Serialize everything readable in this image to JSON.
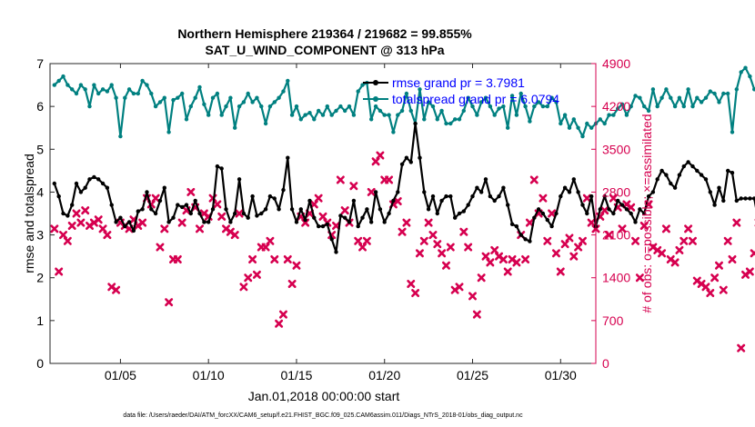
{
  "chart_data": {
    "type": "line",
    "title_line1": "Northern Hemisphere 219364 / 219682 = 99.855%",
    "title_line2": "SAT_U_WIND_COMPONENT @ 313 hPa",
    "xlabel": "Jan.01,2018 00:00:00 start",
    "ylabel_left": "rmse and totalspread",
    "ylabel_right": "# of obs: o=possible; ×=assimilated",
    "footnote": "data file: /Users/raeder/DAI/ATM_forcXX/CAM6_setup/f.e21.FHIST_BGC.f09_025.CAM6assim.011/Diags_NTrS_2018-01/obs_diag_output.nc",
    "xlim": [
      1.0,
      32.0
    ],
    "ylim_left": [
      0,
      7
    ],
    "ylim_right": [
      0,
      4900
    ],
    "x_ticks": [
      {
        "x": 5,
        "label": "01/05"
      },
      {
        "x": 10,
        "label": "01/10"
      },
      {
        "x": 15,
        "label": "01/15"
      },
      {
        "x": 20,
        "label": "01/20"
      },
      {
        "x": 25,
        "label": "01/25"
      },
      {
        "x": 30,
        "label": "01/30"
      }
    ],
    "y_ticks_left": [
      "0",
      "1",
      "2",
      "3",
      "4",
      "5",
      "6",
      "7"
    ],
    "y_ticks_right": [
      "0",
      "700",
      "1400",
      "2100",
      "2800",
      "3500",
      "4200",
      "4900"
    ],
    "colors": {
      "rmse": "#000000",
      "spread": "#008080",
      "obs": "#d6004f",
      "left_axis": "#000000",
      "right_axis": "#d6004f",
      "legend_text": "#0000ff"
    },
    "x_start": 1.25,
    "x_step": 0.25,
    "series": [
      {
        "name": "rmse",
        "label": "rmse grand pr = 3.7981",
        "values": [
          4.2,
          3.9,
          3.5,
          3.45,
          3.7,
          4.2,
          4.0,
          4.1,
          4.3,
          4.35,
          4.3,
          4.2,
          4.1,
          3.7,
          3.3,
          3.4,
          3.2,
          3.3,
          3.1,
          3.55,
          3.6,
          4.0,
          3.6,
          3.5,
          3.8,
          4.1,
          3.3,
          3.4,
          3.7,
          3.65,
          3.7,
          3.5,
          3.8,
          3.5,
          3.3,
          3.3,
          3.6,
          4.6,
          4.55,
          3.6,
          3.3,
          3.5,
          4.3,
          3.5,
          3.4,
          3.9,
          3.45,
          3.5,
          3.6,
          3.9,
          3.85,
          3.6,
          4.05,
          4.8,
          3.6,
          3.3,
          3.6,
          3.35,
          3.8,
          3.4,
          3.2,
          3.2,
          3.25,
          2.9,
          2.6,
          3.45,
          3.4,
          3.3,
          3.8,
          3.2,
          3.4,
          3.6,
          3.3,
          4.0,
          3.6,
          3.3,
          3.5,
          3.8,
          4.0,
          4.65,
          4.8,
          4.7,
          5.6,
          4.8,
          4.0,
          3.6,
          3.9,
          3.5,
          3.8,
          3.9,
          3.9,
          3.4,
          3.5,
          3.55,
          3.7,
          3.9,
          4.1,
          4.0,
          4.3,
          3.9,
          3.8,
          3.9,
          4.1,
          3.7,
          3.25,
          3.2,
          3.0,
          2.9,
          2.85,
          3.4,
          3.6,
          3.5,
          3.35,
          3.2,
          3.5,
          3.9,
          4.1,
          4.0,
          4.3,
          4.0,
          3.7,
          3.5,
          3.9,
          3.2,
          3.6,
          3.9,
          3.6,
          3.5,
          3.8,
          3.7,
          3.6,
          3.5,
          3.3,
          3.6,
          3.5,
          3.9,
          4.0,
          4.3,
          4.5,
          4.4,
          4.2,
          4.1,
          4.4,
          4.6,
          4.7,
          4.6,
          4.5,
          4.4,
          4.3,
          4.0,
          3.7,
          4.1,
          3.8,
          4.5,
          4.45,
          3.8,
          3.85,
          3.85,
          3.85,
          3.85,
          3.3
        ]
      },
      {
        "name": "totalspread",
        "label": "totalspread grand pr = 6.0794",
        "values": [
          6.5,
          6.6,
          6.7,
          6.5,
          6.4,
          6.3,
          6.5,
          6.4,
          6.0,
          6.5,
          6.3,
          6.4,
          6.35,
          6.5,
          6.2,
          5.3,
          6.2,
          6.4,
          6.3,
          6.3,
          6.6,
          6.5,
          6.3,
          6.0,
          6.1,
          6.2,
          5.4,
          6.15,
          6.2,
          6.3,
          5.7,
          6.0,
          6.2,
          6.45,
          6.05,
          5.8,
          6.2,
          6.3,
          5.8,
          6.0,
          6.2,
          5.5,
          6.0,
          6.1,
          6.3,
          6.1,
          6.2,
          6.0,
          5.6,
          6.0,
          6.1,
          6.2,
          6.35,
          6.6,
          5.8,
          6.0,
          5.7,
          5.8,
          5.85,
          5.7,
          5.9,
          5.8,
          6.0,
          5.8,
          5.9,
          6.0,
          5.9,
          6.0,
          5.8,
          6.35,
          6.5,
          6.55,
          5.7,
          6.0,
          5.9,
          5.8,
          5.8,
          5.4,
          5.8,
          5.9,
          6.3,
          5.9,
          5.6,
          6.4,
          5.7,
          6.1,
          6.0,
          5.7,
          5.9,
          5.6,
          5.6,
          5.7,
          5.7,
          5.9,
          6.2,
          6.0,
          5.8,
          6.1,
          6.2,
          6.0,
          5.8,
          5.95,
          6.0,
          5.5,
          6.25,
          5.8,
          6.3,
          6.0,
          5.65,
          6.0,
          6.1,
          6.0,
          6.0,
          6.2,
          6.1,
          5.6,
          5.8,
          5.5,
          5.7,
          5.5,
          5.3,
          5.6,
          5.5,
          5.6,
          5.7,
          5.6,
          5.8,
          5.8,
          5.95,
          6.05,
          5.8,
          6.0,
          6.25,
          6.2,
          6.0,
          5.9,
          6.4,
          6.0,
          6.2,
          6.4,
          6.2,
          6.0,
          6.2,
          6.0,
          6.4,
          6.0,
          6.2,
          6.1,
          6.2,
          6.35,
          6.3,
          6.1,
          6.3,
          6.3,
          5.4,
          6.4,
          6.8,
          6.9,
          6.7,
          6.4,
          6.5,
          6.45
        ]
      }
    ],
    "assimilated_counts": [
      2200,
      1500,
      2100,
      2000,
      2250,
      2450,
      2300,
      2500,
      2250,
      2300,
      2350,
      2200,
      2100,
      1250,
      1200,
      2300,
      2250,
      2200,
      2350,
      2250,
      2300,
      2700,
      2600,
      2700,
      1900,
      2200,
      1000,
      1700,
      1700,
      2300,
      2500,
      2800,
      2550,
      2200,
      2450,
      2400,
      2700,
      2600,
      2400,
      2200,
      2150,
      2100,
      2450,
      1250,
      1400,
      1700,
      1450,
      1900,
      1900,
      2000,
      1700,
      650,
      800,
      1700,
      1300,
      1600,
      2400,
      2300,
      2450,
      2600,
      2700,
      2400,
      2300,
      2100,
      2250,
      3000,
      2500,
      2300,
      2900,
      2000,
      1900,
      2000,
      2800,
      3300,
      3400,
      3000,
      3000,
      2600,
      2650,
      2150,
      2300,
      1300,
      1150,
      1800,
      2000,
      2300,
      2100,
      1950,
      1800,
      1600,
      1900,
      1200,
      1250,
      2150,
      1900,
      1100,
      800,
      1400,
      1750,
      1650,
      1850,
      1750,
      1700,
      1500,
      1700,
      1650,
      2100,
      1700,
      2300,
      3000,
      2450,
      2700,
      2000,
      2450,
      1800,
      1500,
      1950,
      2050,
      1750,
      1900,
      2000,
      2700,
      2300,
      2200,
      2400,
      2500,
      2100,
      2700,
      2550,
      2200,
      2600,
      2550,
      2000,
      1400,
      2250,
      2600,
      1900,
      1850,
      1800,
      2200,
      1700,
      1650,
      1850,
      2000,
      2200,
      2000,
      1350,
      1300,
      1250,
      1150,
      1400,
      1600,
      1200,
      2000,
      1700,
      2300,
      250,
      1450,
      1500,
      1800,
      2300,
      1800,
      1800,
      1800
    ]
  }
}
